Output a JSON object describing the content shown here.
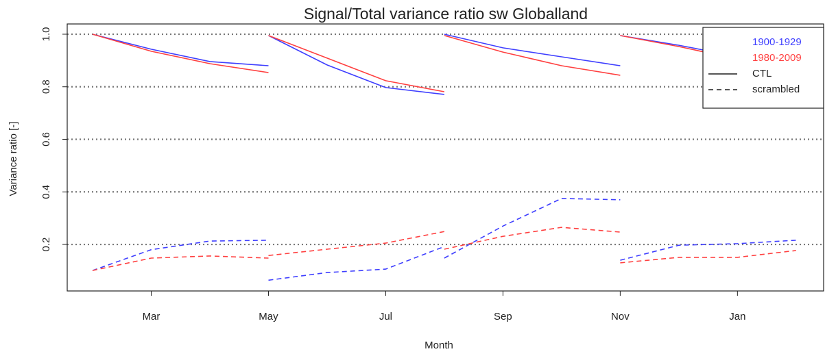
{
  "chart_data": {
    "type": "line",
    "title": "Signal/Total variance ratio sw Globalland",
    "x_label": "Month",
    "y_label": "Variance ratio [-]",
    "x": [
      2,
      3,
      4,
      5,
      null,
      5,
      6,
      7,
      8,
      null,
      8,
      9,
      10,
      11,
      null,
      11,
      12,
      13,
      14
    ],
    "xlim": [
      1.567,
      14.47
    ],
    "xticks": [
      {
        "value": 3,
        "label": "Mar"
      },
      {
        "value": 5,
        "label": "May"
      },
      {
        "value": 7,
        "label": "Jul"
      },
      {
        "value": 9,
        "label": "Sep"
      },
      {
        "value": 11,
        "label": "Nov"
      },
      {
        "value": 13,
        "label": "Jan"
      }
    ],
    "ylim": [
      0.023,
      1.039
    ],
    "yticks": [
      0.2,
      0.4,
      0.6,
      {
        "value": 0.8,
        "label": "0.8"
      },
      {
        "value": 1,
        "label": "1.0"
      }
    ],
    "grid": true,
    "legend_position": "top-right",
    "legend": [
      {
        "label": "1900-1929",
        "color": "#3f3fff"
      },
      {
        "label": "1980-2009",
        "color": "#ff4040"
      },
      {
        "label": "CTL",
        "dash": "solid",
        "color": "#555555"
      },
      {
        "label": "scrambled",
        "dash": "dashed",
        "color": "#555555"
      }
    ],
    "series": [
      {
        "color": "#3f3fff",
        "dash": "solid",
        "values": [
          1.0,
          0.943,
          0.896,
          0.88,
          null,
          0.995,
          0.883,
          0.797,
          0.771,
          null,
          1.0,
          0.948,
          0.914,
          0.88,
          null,
          0.995,
          0.958,
          0.915,
          0.885
        ]
      },
      {
        "color": "#ff4040",
        "dash": "solid",
        "values": [
          1.0,
          0.935,
          0.888,
          0.854,
          null,
          0.995,
          0.909,
          0.823,
          0.781,
          null,
          0.995,
          0.932,
          0.88,
          0.844,
          null,
          0.995,
          0.953,
          0.905,
          0.87
        ]
      },
      {
        "color": "#3f3fff",
        "dash": "dashed",
        "values": [
          0.101,
          0.18,
          0.213,
          0.216,
          null,
          0.064,
          0.093,
          0.106,
          0.192,
          null,
          0.148,
          0.27,
          0.375,
          0.37,
          null,
          0.14,
          0.197,
          0.203,
          0.216
        ]
      },
      {
        "color": "#ff4040",
        "dash": "dashed",
        "values": [
          0.101,
          0.148,
          0.156,
          0.148,
          null,
          0.158,
          0.182,
          0.205,
          0.249,
          null,
          0.182,
          0.231,
          0.265,
          0.247,
          null,
          0.13,
          0.151,
          0.151,
          0.177
        ]
      }
    ]
  }
}
